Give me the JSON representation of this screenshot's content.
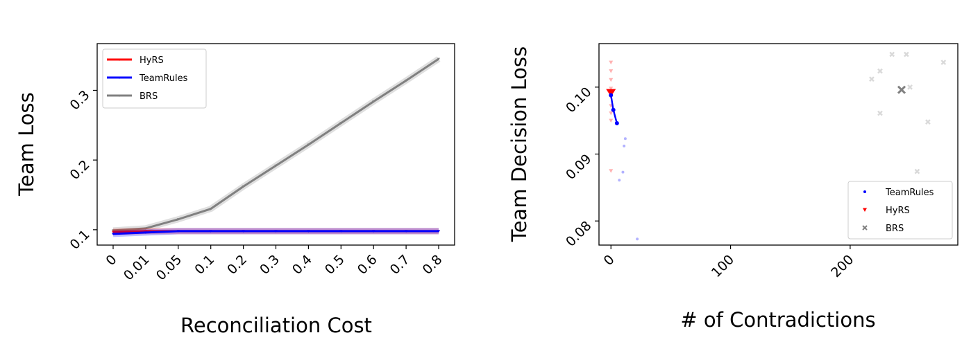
{
  "chart_data": [
    {
      "type": "line",
      "xlabel": "Reconciliation Cost",
      "ylabel": "Team Loss",
      "categories": [
        "0",
        "0.01",
        "0.05",
        "0.1",
        "0.2",
        "0.3",
        "0.4",
        "0.5",
        "0.6",
        "0.7",
        "0.8"
      ],
      "yticks": [
        "0.1",
        "0.2",
        "0.3"
      ],
      "ylim": [
        0.078,
        0.367
      ],
      "legend_position": "upper-left",
      "grid": false,
      "series": [
        {
          "name": "HyRS",
          "color": "#ff0000",
          "values": [
            0.097,
            0.098,
            0.098,
            0.098,
            0.098,
            0.098,
            0.098,
            0.098,
            0.098,
            0.098,
            0.098
          ]
        },
        {
          "name": "TeamRules",
          "color": "#0000ff",
          "values": [
            0.094,
            0.096,
            0.098,
            0.098,
            0.098,
            0.098,
            0.098,
            0.098,
            0.098,
            0.098,
            0.098
          ]
        },
        {
          "name": "BRS",
          "color": "#808080",
          "values": [
            0.099,
            0.102,
            0.115,
            0.13,
            0.162,
            0.192,
            0.222,
            0.253,
            0.284,
            0.314,
            0.345
          ]
        }
      ]
    },
    {
      "type": "scatter",
      "xlabel": "# of Contradictions",
      "ylabel": "Team Decision Loss",
      "xticks": [
        "0",
        "100",
        "200"
      ],
      "yticks": [
        "0.08",
        "0.09",
        "0.10"
      ],
      "xlim": [
        -10,
        290
      ],
      "ylim": [
        0.0764,
        0.1065
      ],
      "legend_position": "lower-right",
      "grid": false,
      "series": [
        {
          "name": "TeamRules",
          "color": "#0000ff",
          "mean_path": [
            [
              0,
              0.0988
            ],
            [
              2,
              0.0966
            ],
            [
              5,
              0.0946
            ]
          ],
          "points": [
            [
              12,
              0.0923
            ],
            [
              11,
              0.0912
            ],
            [
              10,
              0.0873
            ],
            [
              7,
              0.0861
            ],
            [
              22,
              0.0773
            ]
          ]
        },
        {
          "name": "HyRS",
          "color": "#ff0000",
          "mean_point": [
            0,
            0.0992
          ],
          "points": [
            [
              0,
              0.1037
            ],
            [
              0,
              0.1024
            ],
            [
              0,
              0.1011
            ],
            [
              0,
              0.0998
            ],
            [
              0,
              0.0985
            ],
            [
              0,
              0.0972
            ],
            [
              0,
              0.0961
            ],
            [
              0,
              0.095
            ],
            [
              0,
              0.0875
            ]
          ]
        },
        {
          "name": "BRS",
          "color": "#808080",
          "mean_point": [
            243,
            0.0996
          ],
          "points": [
            [
              235,
              0.1049
            ],
            [
              247,
              0.1049
            ],
            [
              278,
              0.1037
            ],
            [
              225,
              0.1024
            ],
            [
              218,
              0.1012
            ],
            [
              250,
              0.1
            ],
            [
              225,
              0.0961
            ],
            [
              265,
              0.0948
            ],
            [
              256,
              0.0874
            ]
          ]
        }
      ]
    }
  ]
}
